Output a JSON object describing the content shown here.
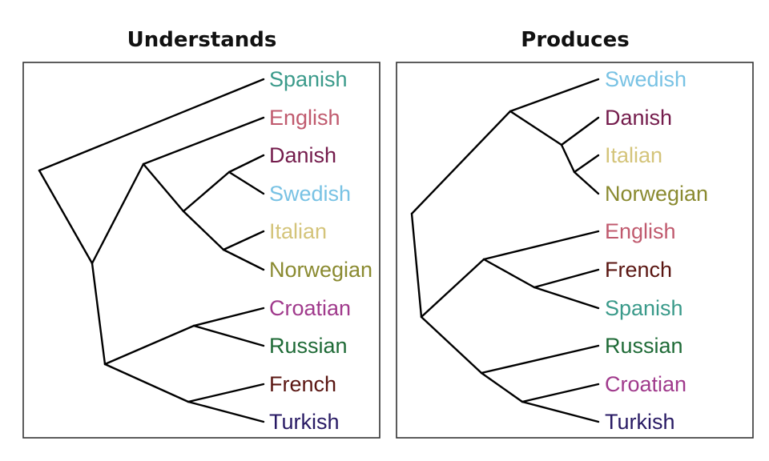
{
  "colors": {
    "Spanish": "#3a9a8a",
    "English": "#c05a6e",
    "Danish": "#741c4c",
    "Swedish": "#78c2e4",
    "Italian": "#d4c47a",
    "Norwegian": "#8a8a30",
    "Croatian": "#a03a8c",
    "Russian": "#1e6a36",
    "French": "#5a1612",
    "Turkish": "#281a64"
  },
  "panels": [
    {
      "title": "Understands",
      "leaves": [
        "Spanish",
        "English",
        "Danish",
        "Swedish",
        "Italian",
        "Norwegian",
        "Croatian",
        "Russian",
        "French",
        "Turkish"
      ]
    },
    {
      "title": "Produces",
      "leaves": [
        "Swedish",
        "Danish",
        "Italian",
        "Norwegian",
        "English",
        "French",
        "Spanish",
        "Russian",
        "Croatian",
        "Turkish"
      ]
    }
  ]
}
